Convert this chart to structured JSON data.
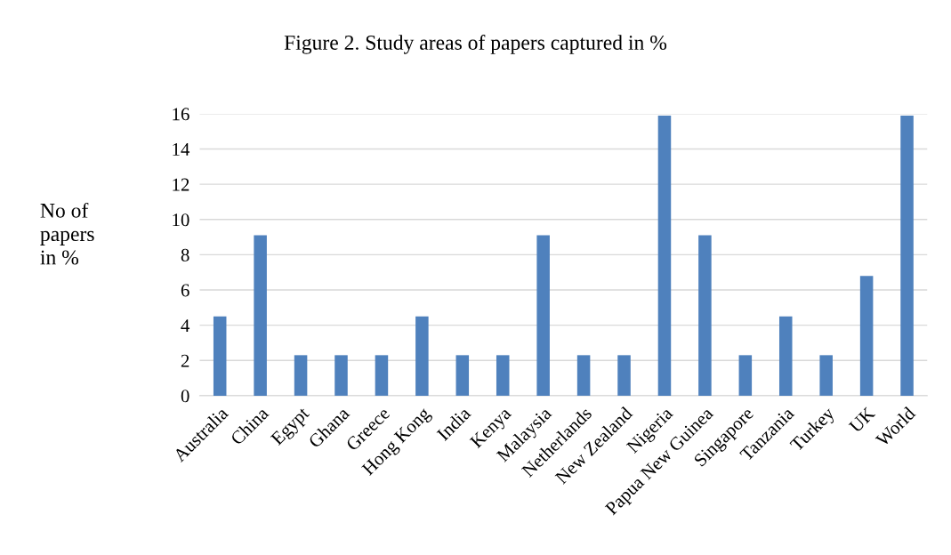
{
  "chart_data": {
    "type": "bar",
    "title": "Figure 2. Study areas of papers captured in %",
    "ylabel": "No of\npapers\nin %",
    "categories": [
      "Australia",
      "China",
      "Egypt",
      "Ghana",
      "Greece",
      "Hong Kong",
      "India",
      "Kenya",
      "Malaysia",
      "Netherlands",
      "New Zealand",
      "Nigeria",
      "Papua New Guinea",
      "Singapore",
      "Tanzania",
      "Turkey",
      "UK",
      "World"
    ],
    "values": [
      4.5,
      9.1,
      2.3,
      2.3,
      2.3,
      4.5,
      2.3,
      2.3,
      9.1,
      2.3,
      2.3,
      15.9,
      9.1,
      2.3,
      4.5,
      2.3,
      6.8,
      15.9
    ],
    "color": "#4f81bd",
    "ylim": [
      0,
      16
    ],
    "yticks": [
      0,
      2,
      4,
      6,
      8,
      10,
      12,
      14,
      16
    ],
    "grid": "y",
    "legend": false
  }
}
